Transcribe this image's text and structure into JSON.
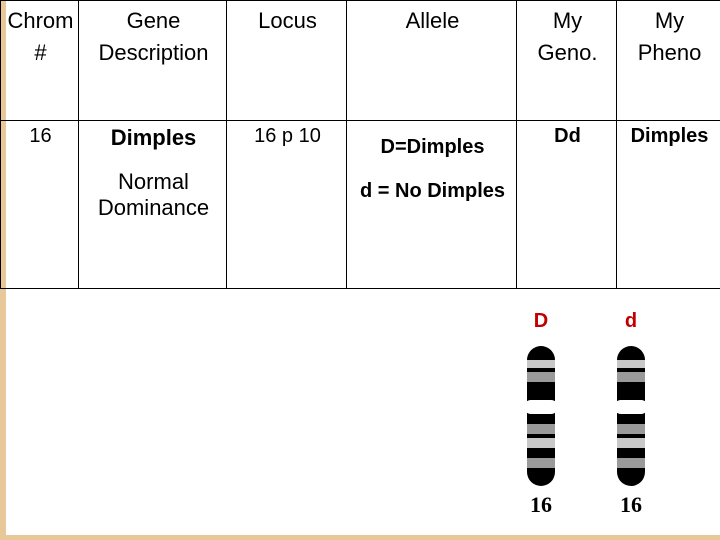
{
  "table": {
    "headers": {
      "chrom": "Chrom\n#",
      "gene": "Gene\nDescription",
      "locus": "Locus",
      "allele": "Allele",
      "geno": "My\nGeno.",
      "pheno": "My\nPheno"
    },
    "row": {
      "chrom": "16",
      "gene_title": "Dimples",
      "gene_note": "Normal Dominance",
      "locus": "16 p 10",
      "allele_dom": "D=Dimples",
      "allele_rec": "d = No Dimples",
      "geno": "Dd",
      "pheno": "Dimples"
    }
  },
  "chromosomes": {
    "left": {
      "allele_label": "D",
      "number": "16"
    },
    "right": {
      "allele_label": "d",
      "number": "16"
    },
    "colors": {
      "allele_label": "#c00000",
      "body": "#000000",
      "band_light": "#c8c8c8",
      "band_mid": "#9a9a9a"
    }
  },
  "frame_color": "#e8c898"
}
